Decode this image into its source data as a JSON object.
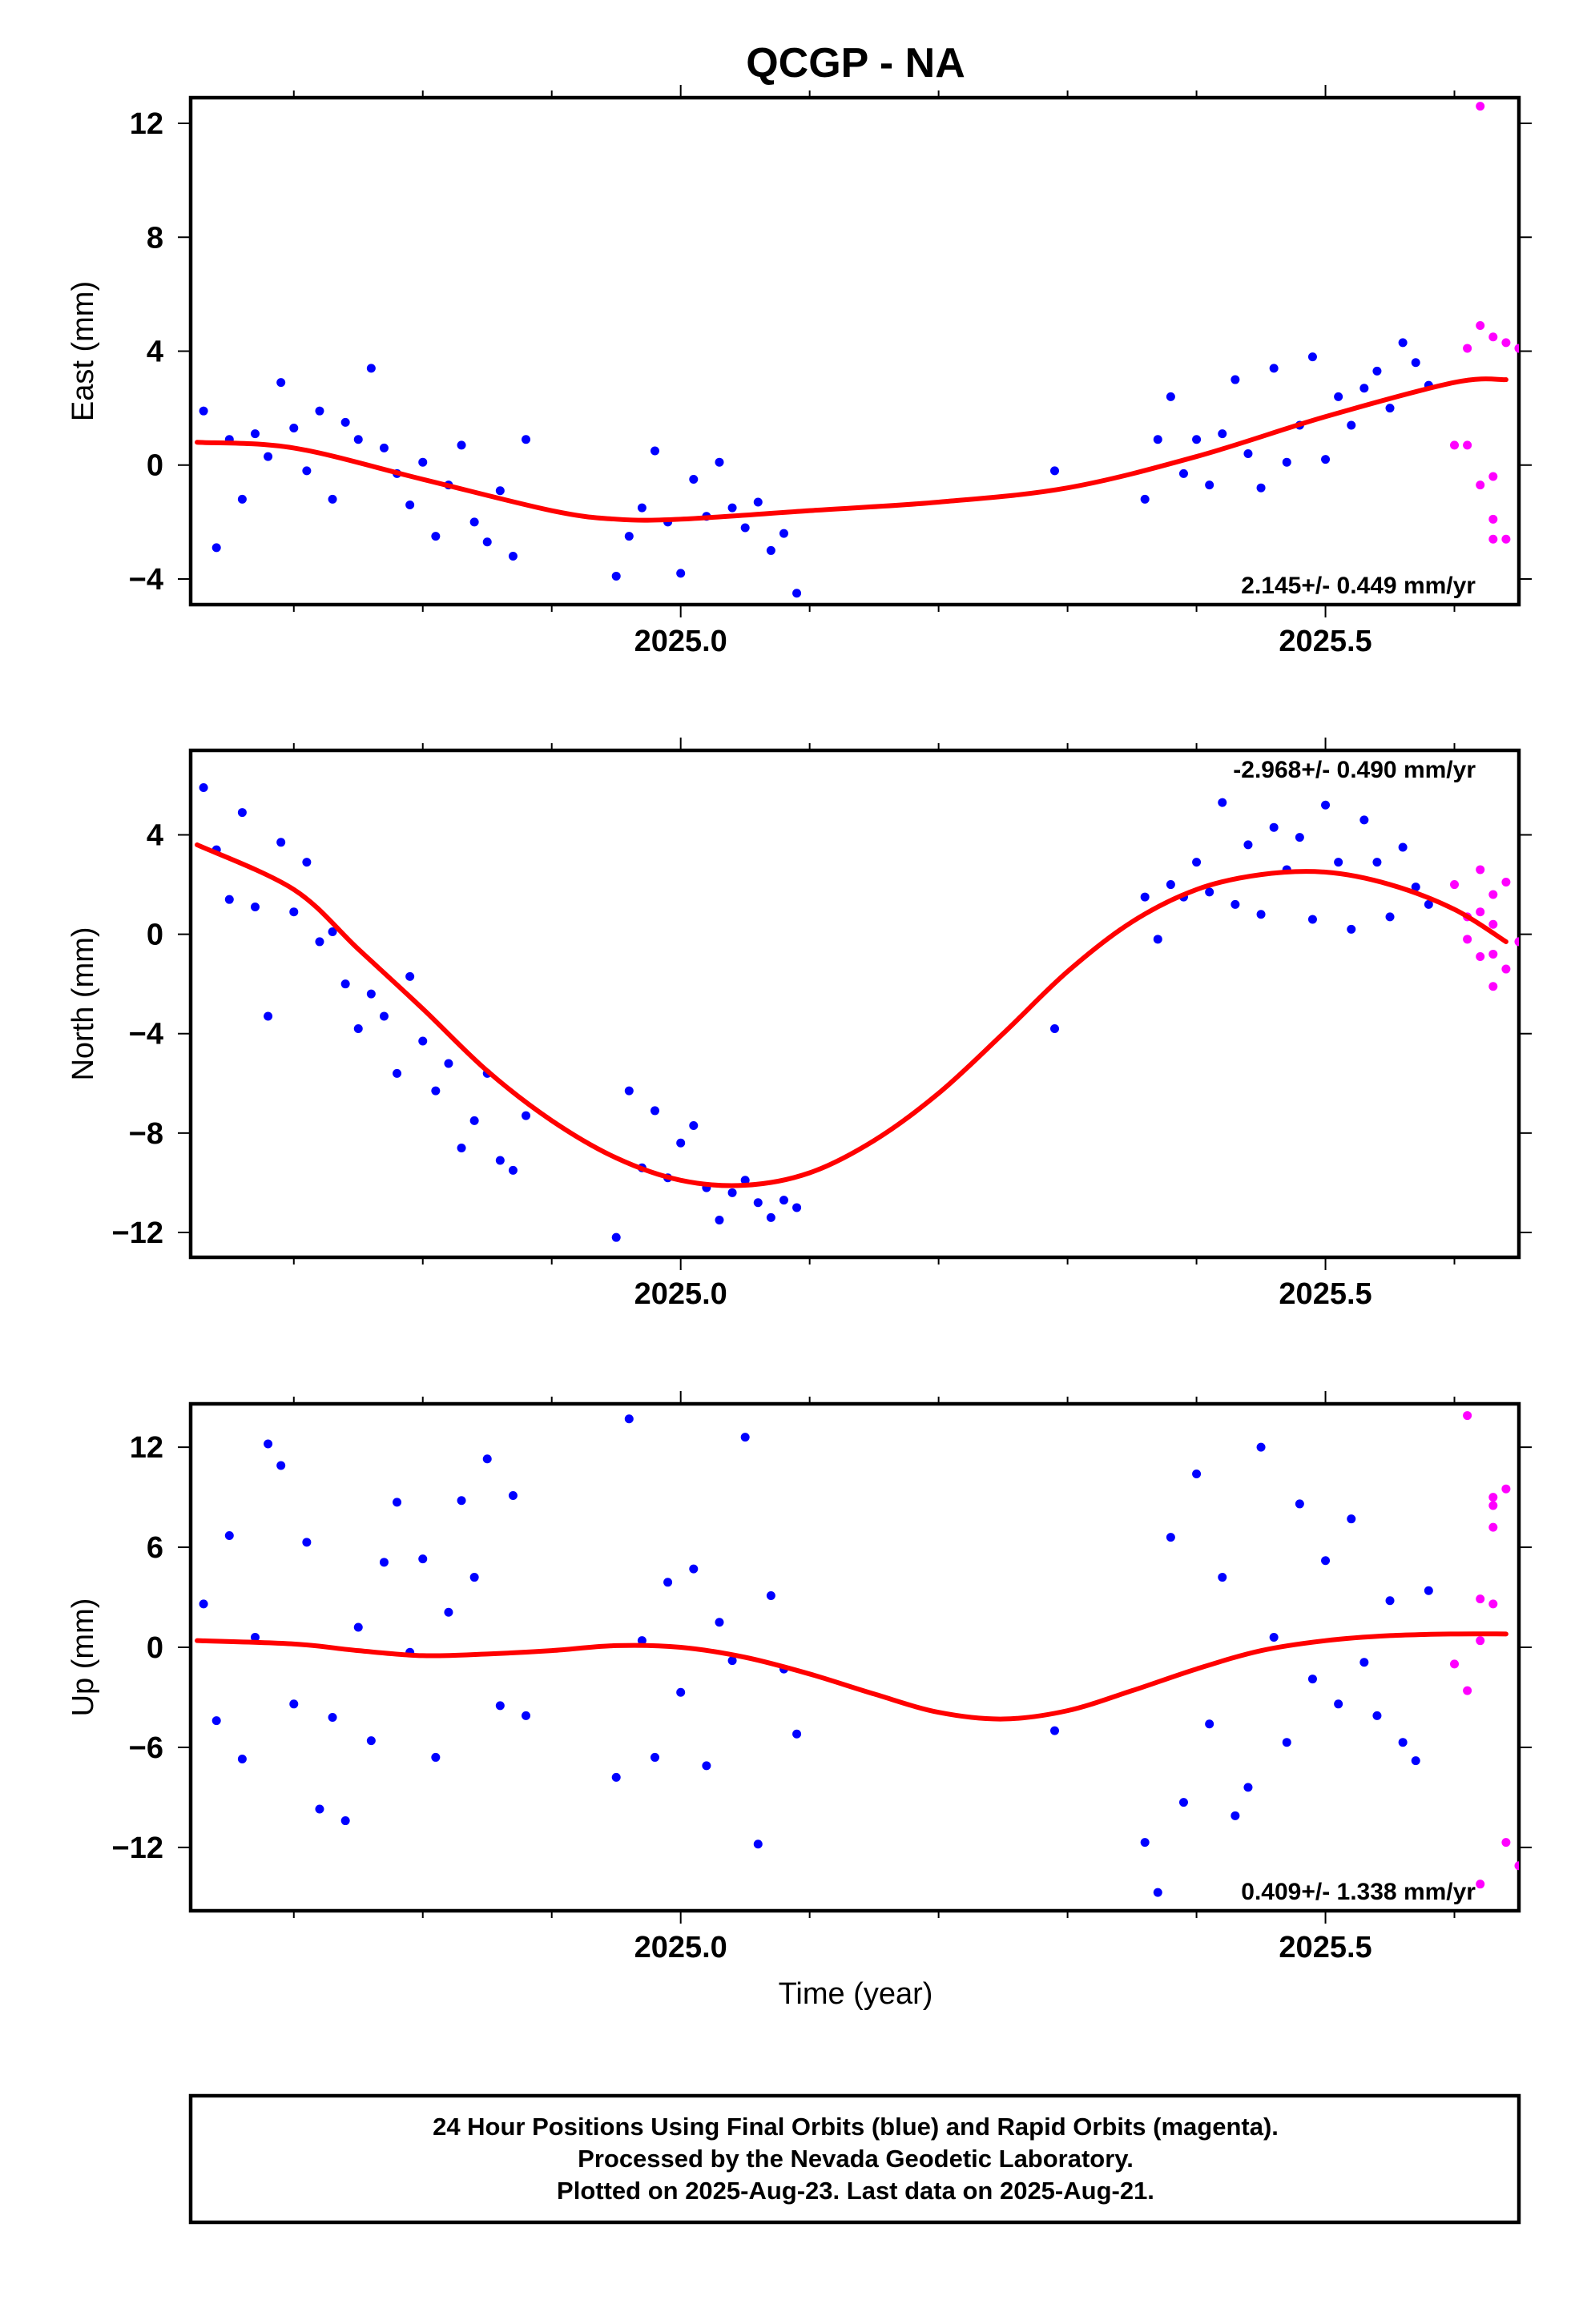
{
  "title": "QCGP - NA",
  "xlabel": "Time (year)",
  "caption": [
    "24 Hour Positions Using Final Orbits (blue) and Rapid Orbits (magenta).",
    "Processed by the Nevada Geodetic Laboratory.",
    "Plotted on 2025-Aug-23. Last data on 2025-Aug-21."
  ],
  "colors": {
    "final": "#0000ff",
    "rapid": "#ff00ff",
    "fit": "#ff0000"
  },
  "chart_data": [
    {
      "type": "scatter",
      "ylabel": "East (mm)",
      "rate_label": "2.145+/- 0.449 mm/yr",
      "rate_position": "bottom-right",
      "xlim": [
        2024.62,
        2025.65
      ],
      "ylim": [
        -4.9,
        12.9
      ],
      "xticks": [
        2025.0,
        2025.5
      ],
      "xtick_labels": [
        "2025.0",
        "2025.5"
      ],
      "yticks": [
        -4,
        0,
        4,
        8,
        12
      ],
      "ytick_labels": [
        "−4",
        "0",
        "4",
        "8",
        "12"
      ],
      "fit": {
        "x": [
          2024.625,
          2024.7,
          2024.8,
          2024.9,
          2024.95,
          2025.0,
          2025.1,
          2025.2,
          2025.3,
          2025.4,
          2025.5,
          2025.6,
          2025.64
        ],
        "y": [
          0.8,
          0.6,
          -0.5,
          -1.6,
          -1.9,
          -1.9,
          -1.6,
          -1.3,
          -0.8,
          0.3,
          1.7,
          2.9,
          3.0
        ]
      },
      "series": [
        {
          "kind": "final",
          "x": [
            2024.63,
            2024.64,
            2024.65,
            2024.66,
            2024.67,
            2024.68,
            2024.69,
            2024.7,
            2024.71,
            2024.72,
            2024.73,
            2024.74,
            2024.75,
            2024.76,
            2024.77,
            2024.78,
            2024.79,
            2024.8,
            2024.81,
            2024.82,
            2024.83,
            2024.84,
            2024.85,
            2024.86,
            2024.87,
            2024.88,
            2024.95,
            2024.96,
            2024.97,
            2024.98,
            2024.99,
            2025.0,
            2025.01,
            2025.02,
            2025.03,
            2025.04,
            2025.05,
            2025.06,
            2025.07,
            2025.08,
            2025.09,
            2025.29,
            2025.36,
            2025.37,
            2025.38,
            2025.39,
            2025.4,
            2025.41,
            2025.42,
            2025.43,
            2025.44,
            2025.45,
            2025.46,
            2025.47,
            2025.48,
            2025.49,
            2025.5,
            2025.51,
            2025.52,
            2025.53,
            2025.54,
            2025.55,
            2025.56,
            2025.57,
            2025.58
          ],
          "y": [
            1.9,
            -2.9,
            0.9,
            -1.2,
            1.1,
            0.3,
            2.9,
            1.3,
            -0.2,
            1.9,
            -1.2,
            1.5,
            0.9,
            3.4,
            0.6,
            -0.3,
            -1.4,
            0.1,
            -2.5,
            -0.7,
            0.7,
            -2.0,
            -2.7,
            -0.9,
            -3.2,
            0.9,
            -3.9,
            -2.5,
            -1.5,
            0.5,
            -2.0,
            -3.8,
            -0.5,
            -1.8,
            0.1,
            -1.5,
            -2.2,
            -1.3,
            -3.0,
            -2.4,
            -4.5,
            -0.2,
            -1.2,
            0.9,
            2.4,
            -0.3,
            0.9,
            -0.7,
            1.1,
            3.0,
            0.4,
            -0.8,
            3.4,
            0.1,
            1.4,
            3.8,
            0.2,
            2.4,
            1.4,
            2.7,
            3.3,
            2.0,
            4.3,
            3.6,
            2.8
          ]
        },
        {
          "kind": "rapid",
          "x": [
            2025.6,
            2025.61,
            2025.61,
            2025.62,
            2025.62,
            2025.63,
            2025.63,
            2025.64,
            2025.64,
            2025.65,
            2025.62,
            2025.63,
            2025.63
          ],
          "y": [
            0.7,
            4.1,
            0.7,
            4.9,
            -0.7,
            4.5,
            -0.4,
            -2.6,
            4.3,
            4.1,
            12.6,
            -1.9,
            -2.6
          ]
        }
      ]
    },
    {
      "type": "scatter",
      "ylabel": "North (mm)",
      "rate_label": "-2.968+/- 0.490 mm/yr",
      "rate_position": "top-right",
      "xlim": [
        2024.62,
        2025.65
      ],
      "ylim": [
        -13.0,
        7.4
      ],
      "xticks": [
        2025.0,
        2025.5
      ],
      "xtick_labels": [
        "2025.0",
        "2025.5"
      ],
      "yticks": [
        -12,
        -8,
        -4,
        0,
        4
      ],
      "ytick_labels": [
        "−12",
        "−8",
        "−4",
        "0",
        "4"
      ],
      "fit": {
        "x": [
          2024.625,
          2024.7,
          2024.75,
          2024.8,
          2024.85,
          2024.9,
          2024.95,
          2025.0,
          2025.05,
          2025.1,
          2025.15,
          2025.2,
          2025.25,
          2025.3,
          2025.35,
          2025.4,
          2025.45,
          2025.5,
          2025.55,
          2025.6,
          2025.64
        ],
        "y": [
          3.6,
          1.8,
          -0.6,
          -3.0,
          -5.5,
          -7.5,
          -9.0,
          -9.9,
          -10.1,
          -9.6,
          -8.3,
          -6.4,
          -4.0,
          -1.5,
          0.5,
          1.8,
          2.4,
          2.5,
          2.0,
          1.0,
          -0.3
        ]
      },
      "series": [
        {
          "kind": "final",
          "x": [
            2024.63,
            2024.64,
            2024.65,
            2024.66,
            2024.67,
            2024.68,
            2024.69,
            2024.7,
            2024.71,
            2024.72,
            2024.73,
            2024.74,
            2024.75,
            2024.76,
            2024.77,
            2024.78,
            2024.79,
            2024.8,
            2024.81,
            2024.82,
            2024.83,
            2024.84,
            2024.85,
            2024.86,
            2024.87,
            2024.88,
            2024.95,
            2024.96,
            2024.97,
            2024.98,
            2024.99,
            2025.0,
            2025.01,
            2025.02,
            2025.03,
            2025.04,
            2025.05,
            2025.06,
            2025.07,
            2025.08,
            2025.09,
            2025.29,
            2025.36,
            2025.37,
            2025.38,
            2025.39,
            2025.4,
            2025.41,
            2025.42,
            2025.43,
            2025.44,
            2025.45,
            2025.46,
            2025.47,
            2025.48,
            2025.49,
            2025.5,
            2025.51,
            2025.52,
            2025.53,
            2025.54,
            2025.55,
            2025.56,
            2025.57,
            2025.58
          ],
          "y": [
            5.9,
            3.4,
            1.4,
            4.9,
            1.1,
            -3.3,
            3.7,
            0.9,
            2.9,
            -0.3,
            0.1,
            -2.0,
            -3.8,
            -2.4,
            -3.3,
            -5.6,
            -1.7,
            -4.3,
            -6.3,
            -5.2,
            -8.6,
            -7.5,
            -5.6,
            -9.1,
            -9.5,
            -7.3,
            -12.2,
            -6.3,
            -9.4,
            -7.1,
            -9.8,
            -8.4,
            -7.7,
            -10.2,
            -11.5,
            -10.4,
            -9.9,
            -10.8,
            -11.4,
            -10.7,
            -11.0,
            -3.8,
            1.5,
            -0.2,
            2.0,
            1.5,
            2.9,
            1.7,
            5.3,
            1.2,
            3.6,
            0.8,
            4.3,
            2.6,
            3.9,
            0.6,
            5.2,
            2.9,
            0.2,
            4.6,
            2.9,
            0.7,
            3.5,
            1.9,
            1.2
          ]
        },
        {
          "kind": "rapid",
          "x": [
            2025.6,
            2025.61,
            2025.61,
            2025.62,
            2025.62,
            2025.63,
            2025.63,
            2025.64,
            2025.64,
            2025.65,
            2025.62,
            2025.63,
            2025.63
          ],
          "y": [
            2.0,
            0.7,
            -0.2,
            2.6,
            0.9,
            -0.8,
            1.6,
            2.1,
            -1.4,
            -0.3,
            -0.9,
            -2.1,
            0.4
          ]
        }
      ]
    },
    {
      "type": "scatter",
      "ylabel": "Up (mm)",
      "rate_label": "0.409+/- 1.338 mm/yr",
      "rate_position": "bottom-right",
      "xlim": [
        2024.62,
        2025.65
      ],
      "ylim": [
        -15.8,
        14.6
      ],
      "xticks": [
        2025.0,
        2025.5
      ],
      "xtick_labels": [
        "2025.0",
        "2025.5"
      ],
      "yticks": [
        -12,
        -6,
        0,
        6,
        12
      ],
      "ytick_labels": [
        "−12",
        "−6",
        "0",
        "6",
        "12"
      ],
      "fit": {
        "x": [
          2024.625,
          2024.7,
          2024.75,
          2024.8,
          2024.85,
          2024.9,
          2024.95,
          2025.0,
          2025.05,
          2025.1,
          2025.15,
          2025.2,
          2025.25,
          2025.3,
          2025.35,
          2025.4,
          2025.45,
          2025.5,
          2025.55,
          2025.6,
          2025.64
        ],
        "y": [
          0.4,
          0.2,
          -0.2,
          -0.5,
          -0.4,
          -0.2,
          0.1,
          0.0,
          -0.6,
          -1.6,
          -2.8,
          -3.9,
          -4.3,
          -3.8,
          -2.6,
          -1.3,
          -0.2,
          0.4,
          0.7,
          0.8,
          0.8
        ]
      },
      "series": [
        {
          "kind": "final",
          "x": [
            2024.63,
            2024.64,
            2024.65,
            2024.66,
            2024.67,
            2024.68,
            2024.69,
            2024.7,
            2024.71,
            2024.72,
            2024.73,
            2024.74,
            2024.75,
            2024.76,
            2024.77,
            2024.78,
            2024.79,
            2024.8,
            2024.81,
            2024.82,
            2024.83,
            2024.84,
            2024.85,
            2024.86,
            2024.87,
            2024.88,
            2024.95,
            2024.96,
            2024.97,
            2024.98,
            2024.99,
            2025.0,
            2025.01,
            2025.02,
            2025.03,
            2025.04,
            2025.05,
            2025.06,
            2025.07,
            2025.08,
            2025.09,
            2025.29,
            2025.36,
            2025.37,
            2025.38,
            2025.39,
            2025.4,
            2025.41,
            2025.42,
            2025.43,
            2025.44,
            2025.45,
            2025.46,
            2025.47,
            2025.48,
            2025.49,
            2025.5,
            2025.51,
            2025.52,
            2025.53,
            2025.54,
            2025.55,
            2025.56,
            2025.57,
            2025.58
          ],
          "y": [
            2.6,
            -4.4,
            6.7,
            -6.7,
            0.6,
            12.2,
            10.9,
            -3.4,
            6.3,
            -9.7,
            -4.2,
            -10.4,
            1.2,
            -5.6,
            5.1,
            8.7,
            -0.3,
            5.3,
            -6.6,
            2.1,
            8.8,
            4.2,
            11.3,
            -3.5,
            9.1,
            -4.1,
            -7.8,
            13.7,
            0.4,
            -6.6,
            3.9,
            -2.7,
            4.7,
            -7.1,
            1.5,
            -0.8,
            12.6,
            -11.8,
            3.1,
            -1.3,
            -5.2,
            -5.0,
            -11.7,
            -14.7,
            6.6,
            -9.3,
            10.4,
            -4.6,
            4.2,
            -10.1,
            -8.4,
            12.0,
            0.6,
            -5.7,
            8.6,
            -1.9,
            5.2,
            -3.4,
            7.7,
            -0.9,
            -4.1,
            2.8,
            -5.7,
            -6.8,
            3.4
          ]
        },
        {
          "kind": "rapid",
          "x": [
            2025.6,
            2025.61,
            2025.61,
            2025.62,
            2025.62,
            2025.63,
            2025.63,
            2025.64,
            2025.64,
            2025.65,
            2025.62,
            2025.63,
            2025.63
          ],
          "y": [
            -1.0,
            -2.6,
            13.9,
            0.4,
            2.9,
            8.5,
            2.6,
            9.5,
            -11.7,
            -13.1,
            -14.2,
            7.2,
            9.0
          ]
        }
      ]
    }
  ]
}
